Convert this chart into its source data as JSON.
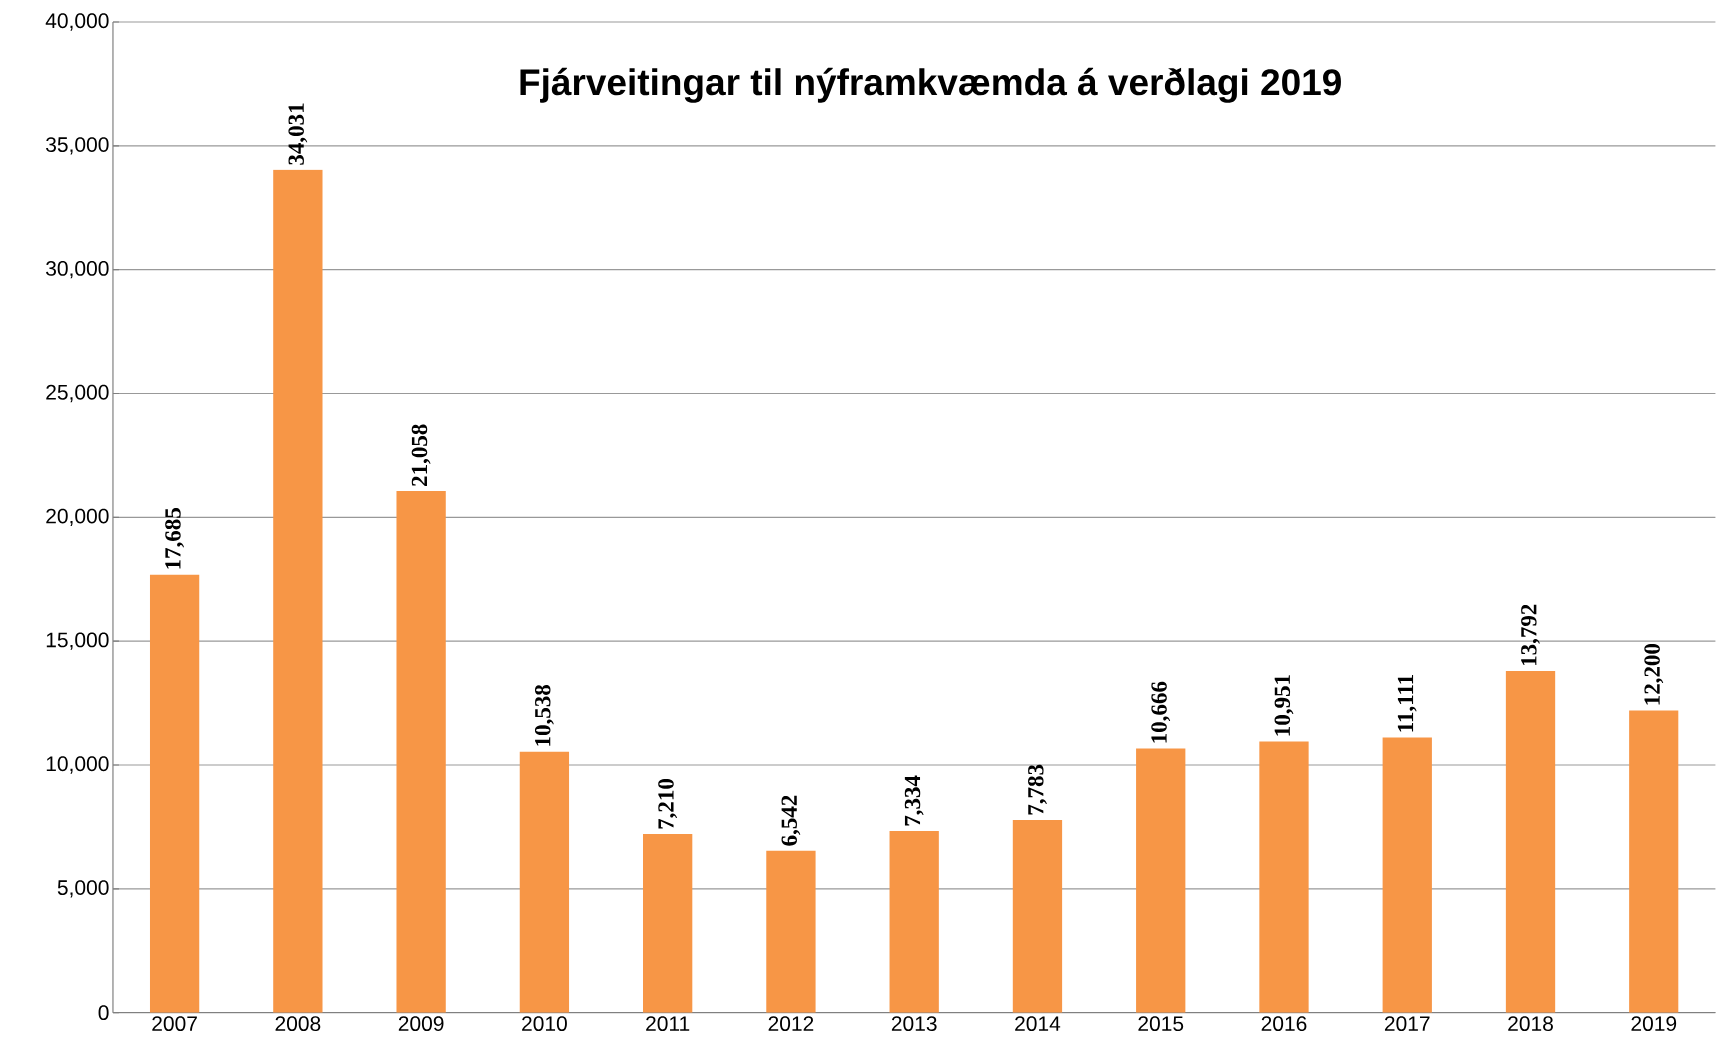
{
  "chart_data": {
    "type": "bar",
    "title": "Fjárveitingar til nýframkvæmda á verðlagi 2019",
    "categories": [
      "2007",
      "2008",
      "2009",
      "2010",
      "2011",
      "2012",
      "2013",
      "2014",
      "2015",
      "2016",
      "2017",
      "2018",
      "2019"
    ],
    "values": [
      17685,
      34031,
      21058,
      10538,
      7210,
      6542,
      7334,
      7783,
      10666,
      10951,
      11111,
      13792,
      12200
    ],
    "value_labels": [
      "17,685",
      "34,031",
      "21,058",
      "10,538",
      "7,210",
      "6,542",
      "7,334",
      "7,783",
      "10,666",
      "10,951",
      "11,111",
      "13,792",
      "12,200"
    ],
    "color": "#f79646",
    "ylim": [
      0,
      40000
    ],
    "yticks": [
      {
        "value": 0,
        "label": "0"
      },
      {
        "value": 5000,
        "label": "5,000"
      },
      {
        "value": 10000,
        "label": "10,000"
      },
      {
        "value": 15000,
        "label": "15,000"
      },
      {
        "value": 20000,
        "label": "20,000"
      },
      {
        "value": 25000,
        "label": "25,000"
      },
      {
        "value": 30000,
        "label": "30,000"
      },
      {
        "value": 35000,
        "label": "35,000"
      },
      {
        "value": 40000,
        "label": "40,000"
      }
    ],
    "grid": "y"
  }
}
